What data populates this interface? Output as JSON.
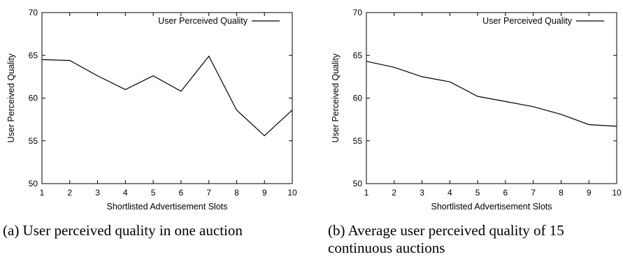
{
  "chart_data": [
    {
      "type": "line",
      "caption": "(a) User perceived quality in one auction",
      "xlabel": "Shortlisted Advertisement Slots",
      "ylabel": "User Perceived Quality",
      "xlim": [
        1,
        10
      ],
      "ylim": [
        50,
        70
      ],
      "xticks": [
        1,
        2,
        3,
        4,
        5,
        6,
        7,
        8,
        9,
        10
      ],
      "yticks": [
        50,
        55,
        60,
        65,
        70
      ],
      "grid": false,
      "legend_position": "top-right",
      "series": [
        {
          "name": "User Perceived Quality",
          "x": [
            1,
            2,
            3,
            4,
            5,
            6,
            7,
            8,
            9,
            10
          ],
          "y": [
            64.5,
            64.4,
            62.6,
            61.0,
            62.6,
            60.8,
            64.9,
            58.6,
            55.6,
            58.6
          ]
        }
      ]
    },
    {
      "type": "line",
      "caption": "(b) Average user perceived quality of 15 continuous auctions",
      "xlabel": "Shortlisted Advertisement Slots",
      "ylabel": "User Perceived Quality",
      "xlim": [
        1,
        10
      ],
      "ylim": [
        50,
        70
      ],
      "xticks": [
        1,
        2,
        3,
        4,
        5,
        6,
        7,
        8,
        9,
        10
      ],
      "yticks": [
        50,
        55,
        60,
        65,
        70
      ],
      "grid": false,
      "legend_position": "top-right",
      "series": [
        {
          "name": "User Perceived Quality",
          "x": [
            1,
            2,
            3,
            4,
            5,
            6,
            7,
            8,
            9,
            10
          ],
          "y": [
            64.3,
            63.6,
            62.5,
            61.9,
            60.2,
            59.6,
            59.0,
            58.1,
            56.9,
            56.7
          ]
        }
      ]
    }
  ]
}
